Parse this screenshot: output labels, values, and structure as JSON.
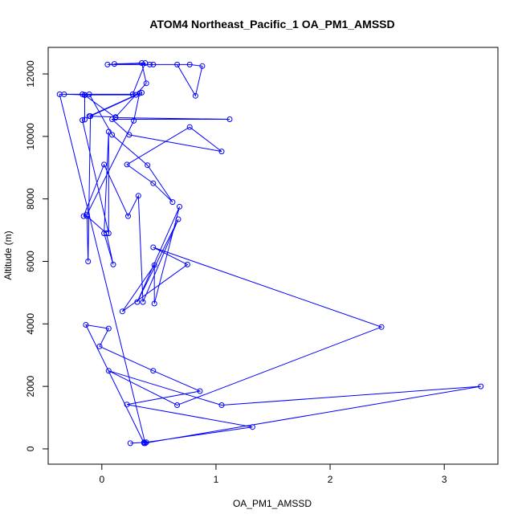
{
  "chart_data": {
    "type": "line",
    "title": "ATOM4 Northeast_Pacific_1 OA_PM1_AMSSD",
    "xlabel": "OA_PM1_AMSSD",
    "ylabel": "Altitude (m)",
    "xlim": [
      -0.47,
      3.47
    ],
    "ylim": [
      -490,
      12850
    ],
    "xticks": [
      0,
      1,
      2,
      3
    ],
    "yticks": [
      0,
      2000,
      4000,
      6000,
      8000,
      10000,
      12000
    ],
    "xtick_labels": [
      "0",
      "1",
      "2",
      "3"
    ],
    "ytick_labels": [
      "0",
      "2000",
      "4000",
      "6000",
      "8000",
      "10000",
      "12000"
    ],
    "grid": false,
    "legend": "none",
    "color": "#0000ff",
    "series": [
      {
        "points": [
          {
            "x": 0.25,
            "y": 180
          },
          {
            "x": 0.39,
            "y": 210
          },
          {
            "x": 1.32,
            "y": 700
          },
          {
            "x": 0.22,
            "y": 1420
          },
          {
            "x": 0.86,
            "y": 1850
          },
          {
            "x": 0.45,
            "y": 2500
          },
          {
            "x": -0.02,
            "y": 3280
          },
          {
            "x": 0.06,
            "y": 3850
          },
          {
            "x": -0.14,
            "y": 3970
          },
          {
            "x": 0.37,
            "y": 180
          },
          {
            "x": 3.32,
            "y": 2000
          },
          {
            "x": 1.05,
            "y": 1400
          },
          {
            "x": 0.06,
            "y": 2500
          },
          {
            "x": 0.66,
            "y": 1400
          },
          {
            "x": 2.45,
            "y": 3900
          },
          {
            "x": 0.45,
            "y": 6450
          },
          {
            "x": 0.75,
            "y": 5900
          },
          {
            "x": 0.18,
            "y": 4400
          },
          {
            "x": 0.46,
            "y": 5880
          },
          {
            "x": 0.46,
            "y": 4650
          },
          {
            "x": 0.68,
            "y": 7750
          },
          {
            "x": 0.31,
            "y": 4700
          },
          {
            "x": 0.67,
            "y": 7350
          },
          {
            "x": 0.36,
            "y": 4700
          },
          {
            "x": 0.32,
            "y": 8100
          },
          {
            "x": 0.23,
            "y": 7450
          },
          {
            "x": 0.02,
            "y": 9100
          },
          {
            "x": -0.16,
            "y": 7450
          },
          {
            "x": -0.13,
            "y": 7450
          },
          {
            "x": 0.04,
            "y": 6900
          },
          {
            "x": 0.1,
            "y": 5900
          },
          {
            "x": 0.02,
            "y": 6900
          },
          {
            "x": 0.06,
            "y": 10150
          },
          {
            "x": 0.06,
            "y": 6900
          },
          {
            "x": -0.17,
            "y": 10520
          },
          {
            "x": -0.15,
            "y": 10540
          },
          {
            "x": -0.15,
            "y": 11320
          },
          {
            "x": 0.12,
            "y": 10600
          },
          {
            "x": 1.12,
            "y": 10550
          },
          {
            "x": 0.09,
            "y": 10550
          },
          {
            "x": 0.24,
            "y": 10050
          },
          {
            "x": 1.05,
            "y": 9520
          },
          {
            "x": 0.77,
            "y": 10300
          },
          {
            "x": 0.22,
            "y": 9100
          },
          {
            "x": 0.45,
            "y": 8500
          },
          {
            "x": 0.62,
            "y": 7900
          },
          {
            "x": 0.4,
            "y": 9080
          },
          {
            "x": 0.09,
            "y": 10050
          },
          {
            "x": -0.11,
            "y": 11350
          },
          {
            "x": -0.17,
            "y": 11350
          },
          {
            "x": -0.33,
            "y": 11350
          },
          {
            "x": -0.15,
            "y": 11330
          },
          {
            "x": 0.3,
            "y": 11330
          },
          {
            "x": 0.35,
            "y": 11400
          },
          {
            "x": -0.1,
            "y": 10650
          },
          {
            "x": -0.12,
            "y": 6000
          },
          {
            "x": -0.13,
            "y": 7500
          },
          {
            "x": 0.28,
            "y": 10500
          },
          {
            "x": 0.33,
            "y": 11380
          },
          {
            "x": -0.11,
            "y": 10650
          },
          {
            "x": 0.12,
            "y": 10620
          },
          {
            "x": 0.39,
            "y": 11700
          },
          {
            "x": 0.35,
            "y": 12350
          },
          {
            "x": 0.05,
            "y": 12300
          },
          {
            "x": 0.42,
            "y": 12300
          },
          {
            "x": 0.77,
            "y": 12300
          },
          {
            "x": 0.88,
            "y": 12250
          },
          {
            "x": 0.82,
            "y": 11300
          },
          {
            "x": 0.66,
            "y": 12300
          },
          {
            "x": 0.45,
            "y": 12300
          },
          {
            "x": 0.11,
            "y": 12320
          },
          {
            "x": 0.38,
            "y": 12350
          },
          {
            "x": 0.27,
            "y": 11350
          },
          {
            "x": -0.37,
            "y": 11350
          },
          {
            "x": 0.38,
            "y": 180
          },
          {
            "x": 0.37,
            "y": 210
          }
        ]
      }
    ]
  }
}
